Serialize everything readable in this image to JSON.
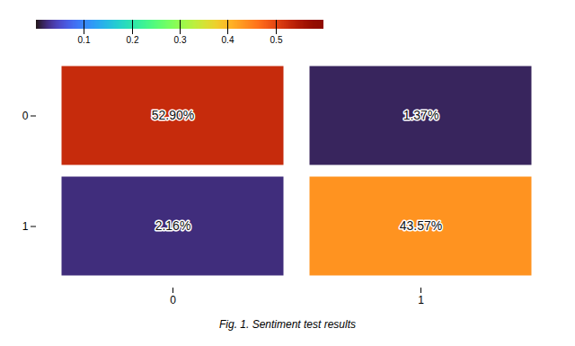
{
  "chart_data": {
    "type": "heatmap",
    "x_categories": [
      "0",
      "1"
    ],
    "y_categories": [
      "0",
      "1"
    ],
    "values": [
      [
        0.529,
        0.0137
      ],
      [
        0.0216,
        0.4357
      ]
    ],
    "value_labels": [
      [
        "52.90%",
        "1.37%"
      ],
      [
        "2.16%",
        "43.57%"
      ]
    ],
    "data_labels": true,
    "color_range": [
      0.0,
      0.6
    ],
    "color_ticks": [
      0.1,
      0.2,
      0.3,
      0.4,
      0.5
    ],
    "caption": "Fig. 1. Sentiment test results"
  }
}
